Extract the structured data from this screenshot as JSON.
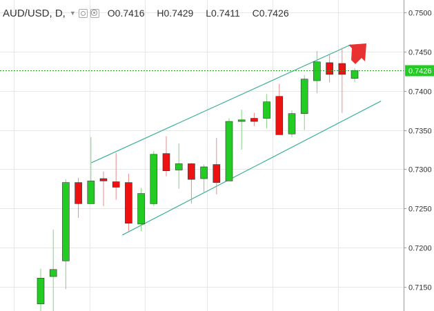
{
  "legend": {
    "symbol": "AUD/USD, D,",
    "open": "O0.7416",
    "high": "H0.7429",
    "low": "L0.7411",
    "close": "C0.7426",
    "icons": [
      "chevron-down-icon",
      "eye-icon",
      "gear-icon"
    ]
  },
  "last_price_label": "0.7426",
  "colors": {
    "up": "#22cc22",
    "down": "#ee1111",
    "wick_up": "#7fd67f",
    "wick_down": "#ec8a8a",
    "channel": "#3cb09a",
    "last_price_line": "#22aa22",
    "arrow": "#e83131",
    "grid": "#e6e6e6"
  },
  "chart_data": {
    "type": "candlestick",
    "yaxis": {
      "ticks": [
        "0.7500",
        "0.7450",
        "0.7400",
        "0.7350",
        "0.7300",
        "0.7250",
        "0.7200",
        "0.7150"
      ],
      "range": [
        0.7119,
        0.7516
      ]
    },
    "candles": [
      {
        "o": 0.7128,
        "h": 0.7173,
        "l": 0.7118,
        "c": 0.7161
      },
      {
        "o": 0.7163,
        "h": 0.7223,
        "l": 0.7118,
        "c": 0.7172
      },
      {
        "o": 0.7183,
        "h": 0.7287,
        "l": 0.7147,
        "c": 0.7283
      },
      {
        "o": 0.7283,
        "h": 0.7289,
        "l": 0.7238,
        "c": 0.7256
      },
      {
        "o": 0.7256,
        "h": 0.7341,
        "l": 0.7256,
        "c": 0.7285
      },
      {
        "o": 0.7288,
        "h": 0.7297,
        "l": 0.7253,
        "c": 0.7285
      },
      {
        "o": 0.7284,
        "h": 0.7321,
        "l": 0.7261,
        "c": 0.7277
      },
      {
        "o": 0.7283,
        "h": 0.7294,
        "l": 0.7221,
        "c": 0.7231
      },
      {
        "o": 0.723,
        "h": 0.7276,
        "l": 0.7221,
        "c": 0.7269
      },
      {
        "o": 0.7256,
        "h": 0.7323,
        "l": 0.7253,
        "c": 0.7319
      },
      {
        "o": 0.732,
        "h": 0.7342,
        "l": 0.7291,
        "c": 0.7298
      },
      {
        "o": 0.7299,
        "h": 0.7333,
        "l": 0.7275,
        "c": 0.7307
      },
      {
        "o": 0.7307,
        "h": 0.7308,
        "l": 0.7256,
        "c": 0.7287
      },
      {
        "o": 0.7288,
        "h": 0.7306,
        "l": 0.727,
        "c": 0.7303
      },
      {
        "o": 0.7306,
        "h": 0.734,
        "l": 0.7268,
        "c": 0.7283
      },
      {
        "o": 0.7285,
        "h": 0.7365,
        "l": 0.7285,
        "c": 0.7361
      },
      {
        "o": 0.7361,
        "h": 0.7376,
        "l": 0.7325,
        "c": 0.7363
      },
      {
        "o": 0.7365,
        "h": 0.7372,
        "l": 0.7355,
        "c": 0.7361
      },
      {
        "o": 0.7365,
        "h": 0.7396,
        "l": 0.7352,
        "c": 0.7386
      },
      {
        "o": 0.7393,
        "h": 0.7409,
        "l": 0.7346,
        "c": 0.7344
      },
      {
        "o": 0.7345,
        "h": 0.7375,
        "l": 0.7341,
        "c": 0.7371
      },
      {
        "o": 0.7371,
        "h": 0.742,
        "l": 0.735,
        "c": 0.7415
      },
      {
        "o": 0.7413,
        "h": 0.7451,
        "l": 0.7397,
        "c": 0.7437
      },
      {
        "o": 0.7436,
        "h": 0.7446,
        "l": 0.7411,
        "c": 0.7421
      },
      {
        "o": 0.7435,
        "h": 0.7455,
        "l": 0.7372,
        "c": 0.7421
      },
      {
        "o": 0.7416,
        "h": 0.7429,
        "l": 0.7411,
        "c": 0.7426
      }
    ],
    "channel_lines": [
      {
        "from": {
          "bar": 4.0,
          "price": 0.7308
        },
        "to": {
          "bar": 24.7,
          "price": 0.7459
        }
      },
      {
        "from": {
          "bar": 6.5,
          "price": 0.7216
        },
        "to": {
          "bar": 27.1,
          "price": 0.7387
        }
      }
    ],
    "last_price": 0.7426
  }
}
